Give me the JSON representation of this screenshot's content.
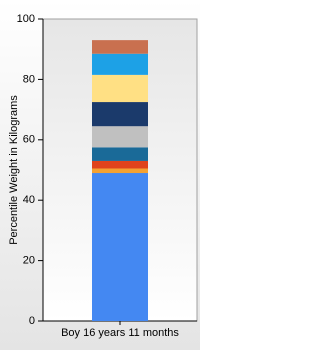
{
  "chart_data": {
    "type": "stacked_bar",
    "y_label": "Percentile Weight in Kilograms",
    "categories": [
      "Boy 16 years 11 months"
    ],
    "series": [
      {
        "color": "#4488f2",
        "values": [
          49
        ]
      },
      {
        "color": "#f4a233",
        "values": [
          1.5
        ]
      },
      {
        "color": "#e0431c",
        "values": [
          2.5
        ]
      },
      {
        "color": "#1a6a98",
        "values": [
          4.5
        ]
      },
      {
        "color": "#c0c0c0",
        "values": [
          7
        ]
      },
      {
        "color": "#1b3a6b",
        "values": [
          8
        ]
      },
      {
        "color": "#ffe084",
        "values": [
          9
        ]
      },
      {
        "color": "#1da1e6",
        "values": [
          7
        ]
      },
      {
        "color": "#c9704f",
        "values": [
          4.5
        ]
      }
    ],
    "ylim": [
      0,
      100
    ],
    "yticks": [
      0,
      20,
      40,
      60,
      80,
      100
    ]
  }
}
